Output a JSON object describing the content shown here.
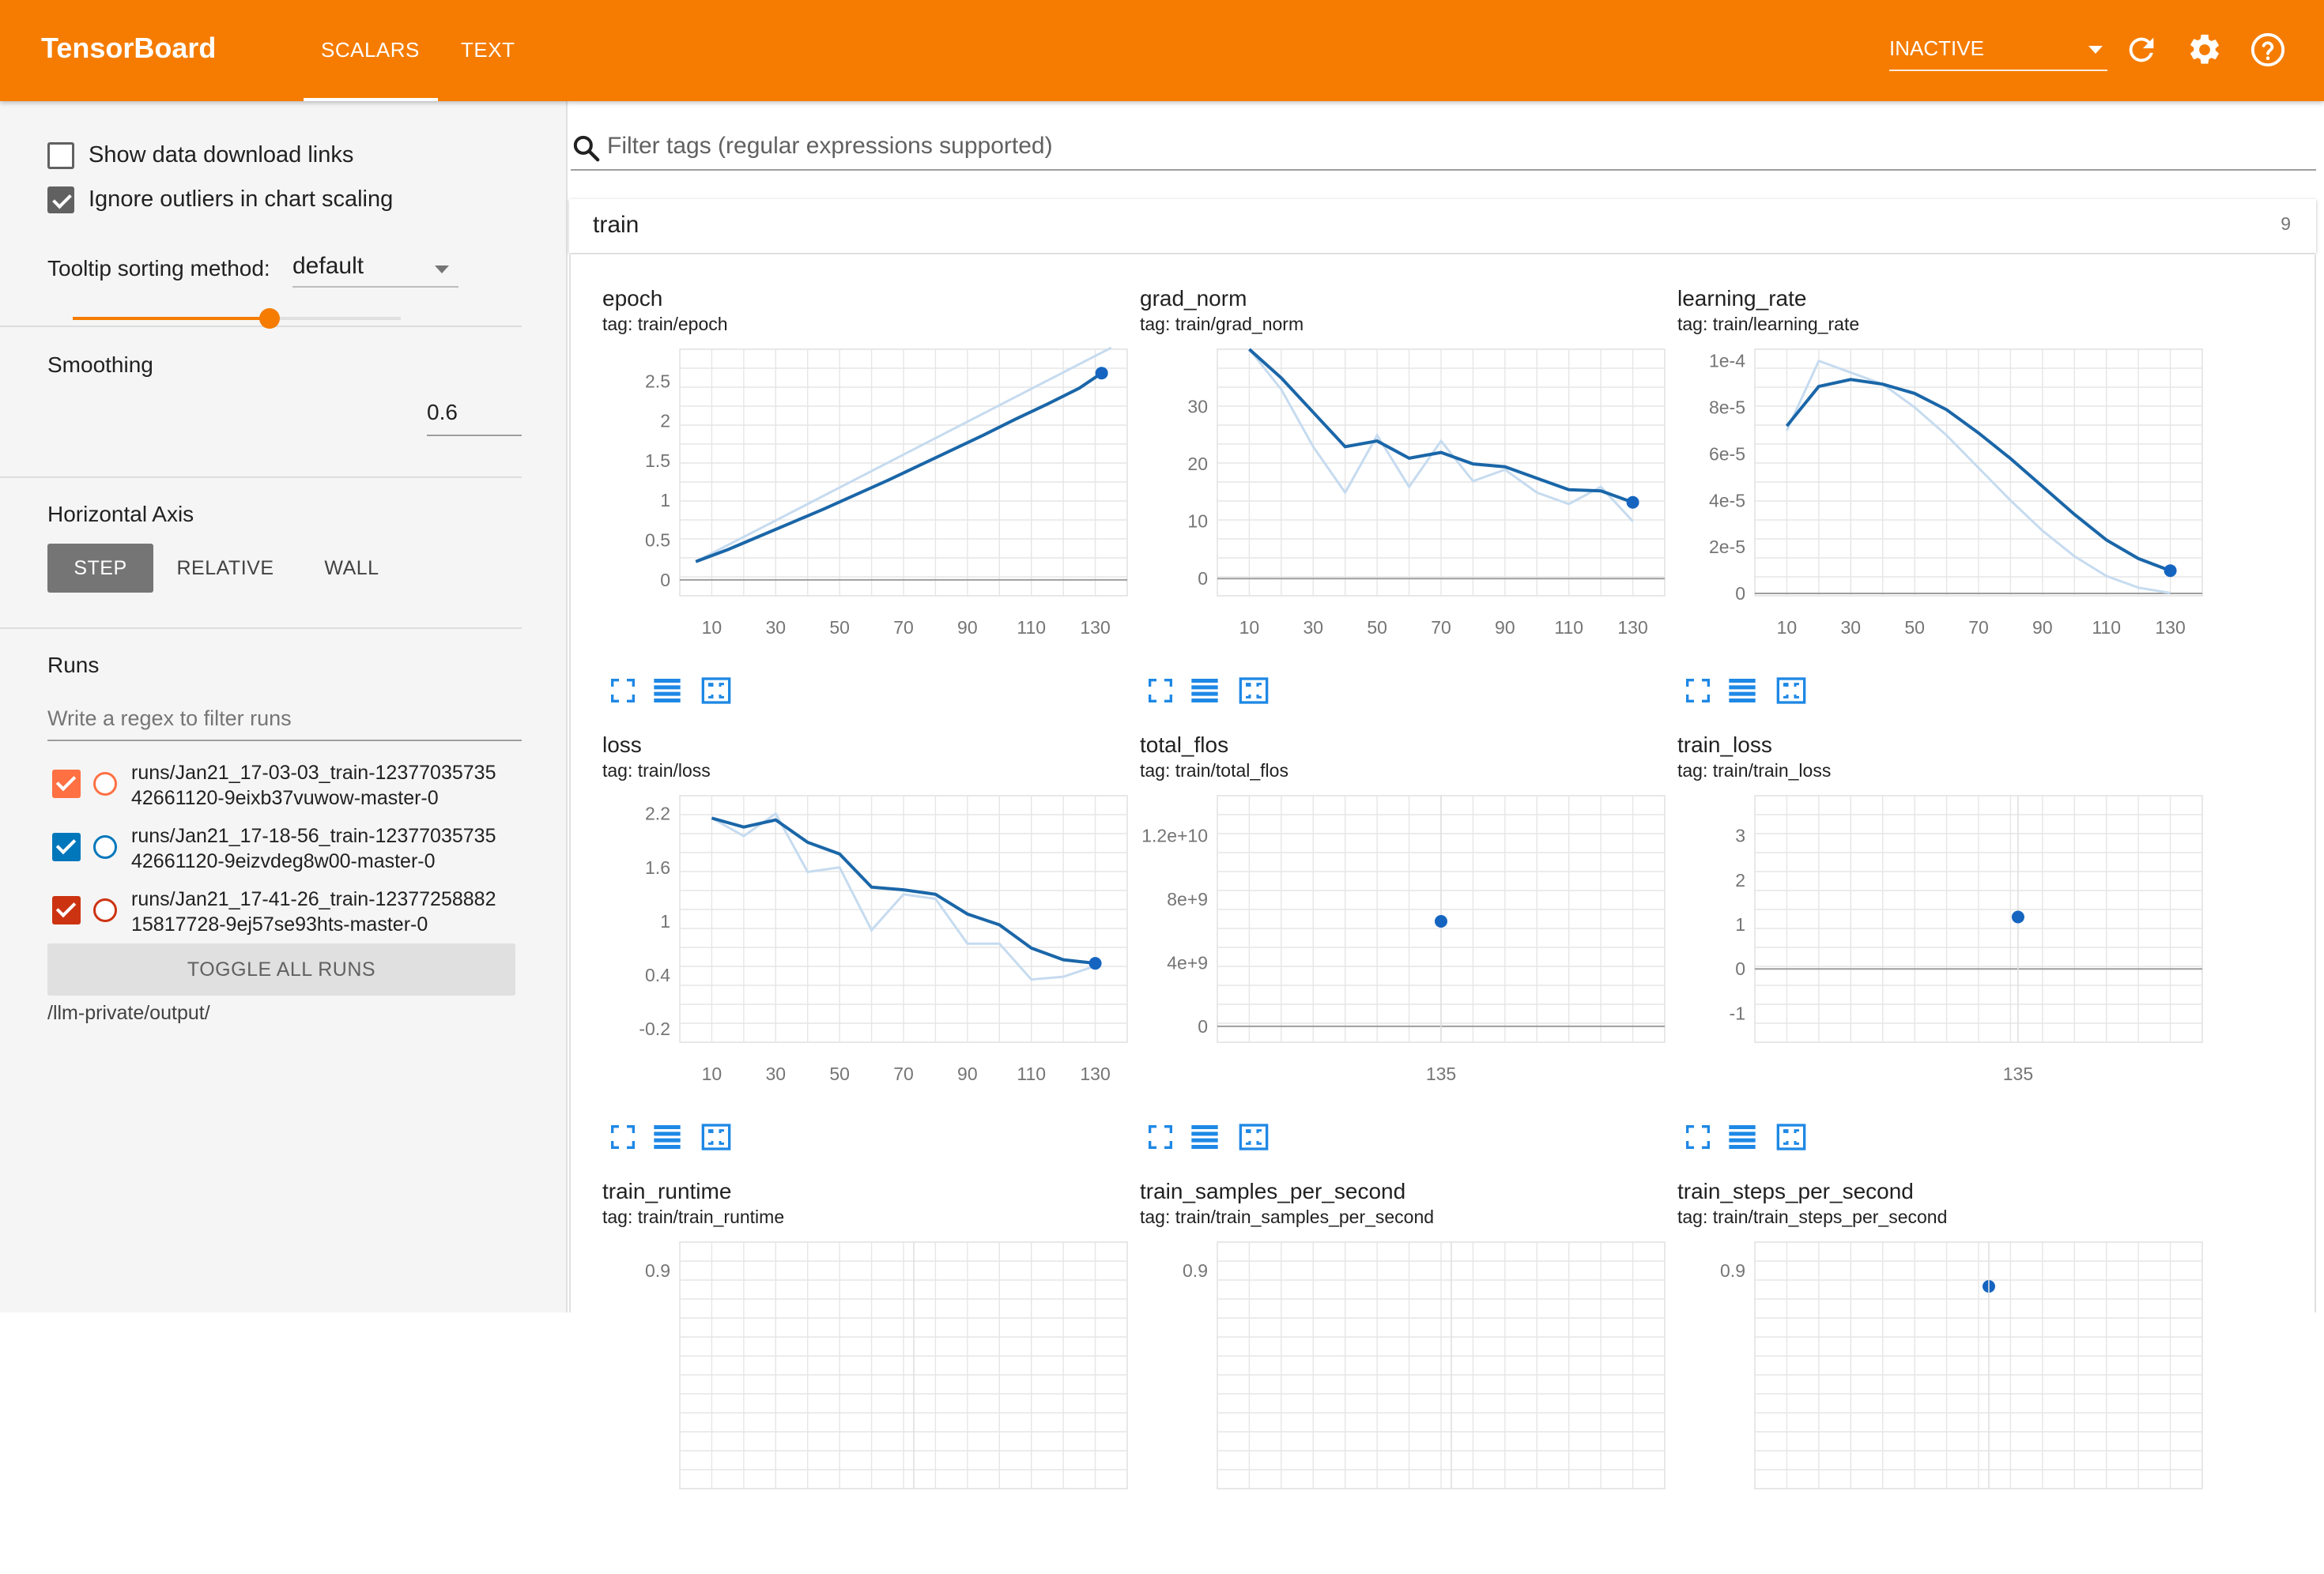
{
  "header": {
    "app_title": "TensorBoard",
    "tabs": [
      {
        "label": "SCALARS",
        "active": true
      },
      {
        "label": "TEXT",
        "active": false
      }
    ],
    "status_select": "INACTIVE",
    "icons": [
      "refresh-icon",
      "settings-icon",
      "help-icon"
    ],
    "accent_color": "#f57c00"
  },
  "sidebar": {
    "show_download_links": {
      "label": "Show data download links",
      "checked": false
    },
    "ignore_outliers": {
      "label": "Ignore outliers in chart scaling",
      "checked": true
    },
    "tooltip_sorting": {
      "label": "Tooltip sorting method:",
      "value": "default"
    },
    "smoothing": {
      "label": "Smoothing",
      "value": "0.6",
      "fraction": 0.6
    },
    "horizontal_axis": {
      "label": "Horizontal Axis",
      "options": [
        "STEP",
        "RELATIVE",
        "WALL"
      ],
      "selected": "STEP"
    },
    "runs": {
      "label": "Runs",
      "filter_placeholder": "Write a regex to filter runs",
      "items": [
        {
          "line1": "runs/Jan21_17-03-03_train-12377035735",
          "line2": "42661120-9eixb37vuwow-master-0",
          "color": "#ff7043",
          "checked": true
        },
        {
          "line1": "runs/Jan21_17-18-56_train-12377035735",
          "line2": "42661120-9eizvdeg8w00-master-0",
          "color": "#0077bb",
          "checked": true
        },
        {
          "line1": "runs/Jan21_17-41-26_train-12377258882",
          "line2": "15817728-9ej57se93hts-master-0",
          "color": "#cc3311",
          "checked": true
        }
      ],
      "toggle_label": "TOGGLE ALL RUNS",
      "logdir": "/llm-private/output/"
    }
  },
  "main": {
    "filter_placeholder": "Filter tags (regular expressions supported)",
    "group": {
      "name": "train",
      "count": "9"
    }
  },
  "chart_data": [
    {
      "type": "line",
      "title": "epoch",
      "tag": "tag: train/epoch",
      "xticks": [
        "10",
        "30",
        "50",
        "70",
        "90",
        "110",
        "130"
      ],
      "yticks": [
        "0",
        "0.5",
        "1",
        "1.5",
        "2",
        "2.5"
      ],
      "xlim": [
        0,
        140
      ],
      "ylim": [
        -0.2,
        2.9
      ],
      "series": [
        {
          "x": [
            5,
            135
          ],
          "values": [
            0.23,
            2.93
          ],
          "style": "raw"
        },
        {
          "x": [
            5,
            15,
            25,
            35,
            45,
            55,
            65,
            75,
            85,
            95,
            105,
            115,
            125,
            132
          ],
          "values": [
            0.23,
            0.38,
            0.55,
            0.72,
            0.89,
            1.07,
            1.25,
            1.44,
            1.63,
            1.82,
            2.02,
            2.21,
            2.41,
            2.6
          ],
          "style": "smoothed"
        }
      ]
    },
    {
      "type": "line",
      "title": "grad_norm",
      "tag": "tag: train/grad_norm",
      "xticks": [
        "10",
        "30",
        "50",
        "70",
        "90",
        "110",
        "130"
      ],
      "yticks": [
        "0",
        "10",
        "20",
        "30"
      ],
      "xlim": [
        0,
        140
      ],
      "ylim": [
        -3,
        40
      ],
      "series": [
        {
          "x": [
            10,
            20,
            30,
            40,
            50,
            60,
            70,
            80,
            90,
            100,
            110,
            120,
            130
          ],
          "values": [
            40,
            33,
            23,
            15,
            25,
            16,
            24,
            17,
            19,
            15,
            13,
            16,
            10
          ],
          "style": "raw"
        },
        {
          "x": [
            10,
            20,
            30,
            40,
            50,
            60,
            70,
            80,
            90,
            100,
            110,
            120,
            130
          ],
          "values": [
            40,
            35,
            29,
            23,
            24,
            21,
            22,
            20,
            19.5,
            17.5,
            15.5,
            15.3,
            13.3
          ],
          "style": "smoothed"
        }
      ]
    },
    {
      "type": "line",
      "title": "learning_rate",
      "tag": "tag: train/learning_rate",
      "xticks": [
        "10",
        "30",
        "50",
        "70",
        "90",
        "110",
        "130"
      ],
      "yticks": [
        "0",
        "2e-5",
        "4e-5",
        "6e-5",
        "8e-5",
        "1e-4"
      ],
      "xlim": [
        0,
        140
      ],
      "ylim": [
        -1e-06,
        0.000105
      ],
      "series": [
        {
          "x": [
            10,
            20,
            30,
            40,
            50,
            60,
            70,
            80,
            90,
            100,
            110,
            120,
            130
          ],
          "values": [
            7e-05,
            0.0001,
            9.5e-05,
            9e-05,
            8e-05,
            6.8e-05,
            5.4e-05,
            4e-05,
            2.7e-05,
            1.6e-05,
            7.5e-06,
            2.5e-06,
            2e-07
          ],
          "style": "raw"
        },
        {
          "x": [
            10,
            20,
            30,
            40,
            50,
            60,
            70,
            80,
            90,
            100,
            110,
            120,
            130
          ],
          "values": [
            7.2e-05,
            8.9e-05,
            9.2e-05,
            9e-05,
            8.6e-05,
            7.9e-05,
            6.9e-05,
            5.8e-05,
            4.6e-05,
            3.4e-05,
            2.3e-05,
            1.5e-05,
            9.8e-06
          ],
          "style": "smoothed"
        }
      ]
    },
    {
      "type": "line",
      "title": "loss",
      "tag": "tag: train/loss",
      "xticks": [
        "10",
        "30",
        "50",
        "70",
        "90",
        "110",
        "130"
      ],
      "yticks": [
        "-0.2",
        "0.4",
        "1",
        "1.6",
        "2.2"
      ],
      "xlim": [
        0,
        140
      ],
      "ylim": [
        -0.35,
        2.4
      ],
      "series": [
        {
          "x": [
            10,
            20,
            30,
            40,
            50,
            60,
            70,
            80,
            90,
            100,
            110,
            120,
            130
          ],
          "values": [
            2.15,
            1.95,
            2.2,
            1.55,
            1.6,
            0.9,
            1.3,
            1.25,
            0.75,
            0.75,
            0.35,
            0.38,
            0.5
          ],
          "style": "raw"
        },
        {
          "x": [
            10,
            20,
            30,
            40,
            50,
            60,
            70,
            80,
            90,
            100,
            110,
            120,
            130
          ],
          "values": [
            2.15,
            2.05,
            2.13,
            1.88,
            1.75,
            1.38,
            1.35,
            1.3,
            1.08,
            0.96,
            0.7,
            0.57,
            0.53
          ],
          "style": "smoothed"
        }
      ]
    },
    {
      "type": "scatter",
      "title": "total_flos",
      "tag": "tag: train/total_flos",
      "xticks": [
        "135"
      ],
      "yticks": [
        "0",
        "4e+9",
        "8e+9",
        "1.2e+10"
      ],
      "xlim": [
        125,
        145
      ],
      "ylim": [
        -1000000000,
        14500000000
      ],
      "series": [
        {
          "x": [
            135
          ],
          "values": [
            6600000000
          ],
          "style": "point"
        }
      ]
    },
    {
      "type": "scatter",
      "title": "train_loss",
      "tag": "tag: train/train_loss",
      "xticks": [
        "135"
      ],
      "yticks": [
        "-1",
        "0",
        "1",
        "2",
        "3"
      ],
      "xlim": [
        130,
        138.5
      ],
      "ylim": [
        -1.65,
        3.9
      ],
      "series": [
        {
          "x": [
            135
          ],
          "values": [
            1.17
          ],
          "style": "point"
        }
      ]
    },
    {
      "type": "line",
      "title": "train_runtime",
      "tag": "tag: train/train_runtime",
      "xticks": [],
      "yticks": [
        "0.9"
      ]
    },
    {
      "type": "line",
      "title": "train_samples_per_second",
      "tag": "tag: train/train_samples_per_second",
      "xticks": [],
      "yticks": [
        "0.9"
      ]
    },
    {
      "type": "scatter",
      "title": "train_steps_per_second",
      "tag": "tag: train/train_steps_per_second",
      "xticks": [],
      "yticks": [
        "0.9"
      ]
    }
  ]
}
